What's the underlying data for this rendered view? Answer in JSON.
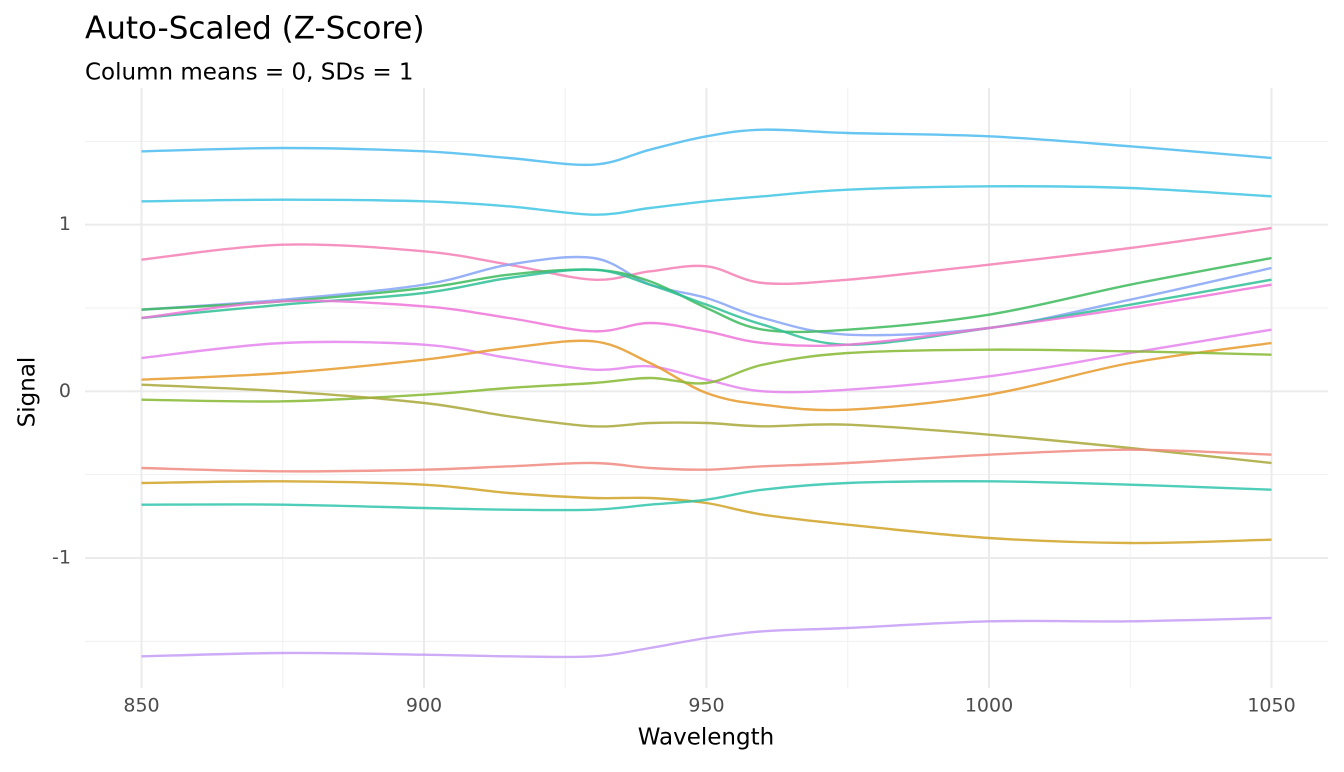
{
  "chart_data": {
    "type": "line",
    "title": "Auto-Scaled (Z-Score)",
    "subtitle": "Column means = 0, SDs = 1",
    "x_label": "Wavelength",
    "y_label": "Signal",
    "x": [
      850,
      875,
      900,
      915,
      930,
      940,
      950,
      960,
      975,
      1000,
      1025,
      1050
    ],
    "series": [
      {
        "color": "#4cbcee",
        "values": [
          1.44,
          1.46,
          1.44,
          1.4,
          1.36,
          1.45,
          1.53,
          1.57,
          1.55,
          1.53,
          1.47,
          1.4
        ]
      },
      {
        "color": "#3fc6e4",
        "values": [
          1.14,
          1.15,
          1.14,
          1.11,
          1.06,
          1.1,
          1.14,
          1.17,
          1.21,
          1.23,
          1.22,
          1.17
        ]
      },
      {
        "color": "#f47fb4",
        "values": [
          0.79,
          0.88,
          0.84,
          0.76,
          0.67,
          0.72,
          0.75,
          0.65,
          0.67,
          0.76,
          0.86,
          0.98
        ]
      },
      {
        "color": "#86a4f6",
        "values": [
          0.49,
          0.55,
          0.64,
          0.76,
          0.8,
          0.64,
          0.56,
          0.44,
          0.34,
          0.38,
          0.55,
          0.74
        ]
      },
      {
        "color": "#3cba5c",
        "values": [
          0.49,
          0.54,
          0.62,
          0.7,
          0.73,
          0.66,
          0.5,
          0.37,
          0.37,
          0.46,
          0.64,
          0.8
        ]
      },
      {
        "color": "#2fc095",
        "values": [
          0.44,
          0.52,
          0.59,
          0.68,
          0.73,
          0.64,
          0.52,
          0.4,
          0.28,
          0.38,
          0.52,
          0.67
        ]
      },
      {
        "color": "#ee76d8",
        "values": [
          0.44,
          0.54,
          0.51,
          0.44,
          0.36,
          0.41,
          0.36,
          0.29,
          0.28,
          0.38,
          0.5,
          0.64
        ]
      },
      {
        "color": "#e584ee",
        "values": [
          0.2,
          0.29,
          0.28,
          0.2,
          0.13,
          0.15,
          0.07,
          0.0,
          0.01,
          0.09,
          0.23,
          0.37
        ]
      },
      {
        "color": "#e69a2a",
        "values": [
          0.07,
          0.11,
          0.19,
          0.26,
          0.3,
          0.17,
          -0.01,
          -0.08,
          -0.11,
          -0.02,
          0.17,
          0.29
        ]
      },
      {
        "color": "#86b932",
        "values": [
          -0.05,
          -0.06,
          -0.02,
          0.02,
          0.05,
          0.08,
          0.05,
          0.16,
          0.23,
          0.25,
          0.24,
          0.22
        ]
      },
      {
        "color": "#a8a83a",
        "values": [
          0.04,
          0.0,
          -0.07,
          -0.15,
          -0.21,
          -0.19,
          -0.19,
          -0.21,
          -0.2,
          -0.26,
          -0.34,
          -0.43
        ]
      },
      {
        "color": "#f08a80",
        "values": [
          -0.46,
          -0.48,
          -0.47,
          -0.45,
          -0.43,
          -0.46,
          -0.47,
          -0.45,
          -0.43,
          -0.38,
          -0.35,
          -0.38
        ]
      },
      {
        "color": "#d0a226",
        "values": [
          -0.55,
          -0.54,
          -0.56,
          -0.61,
          -0.64,
          -0.64,
          -0.67,
          -0.74,
          -0.8,
          -0.88,
          -0.91,
          -0.89
        ]
      },
      {
        "color": "#2fc4ad",
        "values": [
          -0.68,
          -0.68,
          -0.7,
          -0.71,
          -0.71,
          -0.68,
          -0.65,
          -0.59,
          -0.55,
          -0.54,
          -0.56,
          -0.59
        ]
      },
      {
        "color": "#c49cf6",
        "values": [
          -1.59,
          -1.57,
          -1.58,
          -1.59,
          -1.59,
          -1.54,
          -1.48,
          -1.44,
          -1.42,
          -1.38,
          -1.38,
          -1.36
        ]
      }
    ],
    "xlim": [
      840,
      1060
    ],
    "ylim": [
      -1.78,
      1.82
    ],
    "xticks": [
      850,
      900,
      950,
      1000,
      1050
    ],
    "yticks": [
      -1,
      0,
      1
    ],
    "grid": true
  }
}
